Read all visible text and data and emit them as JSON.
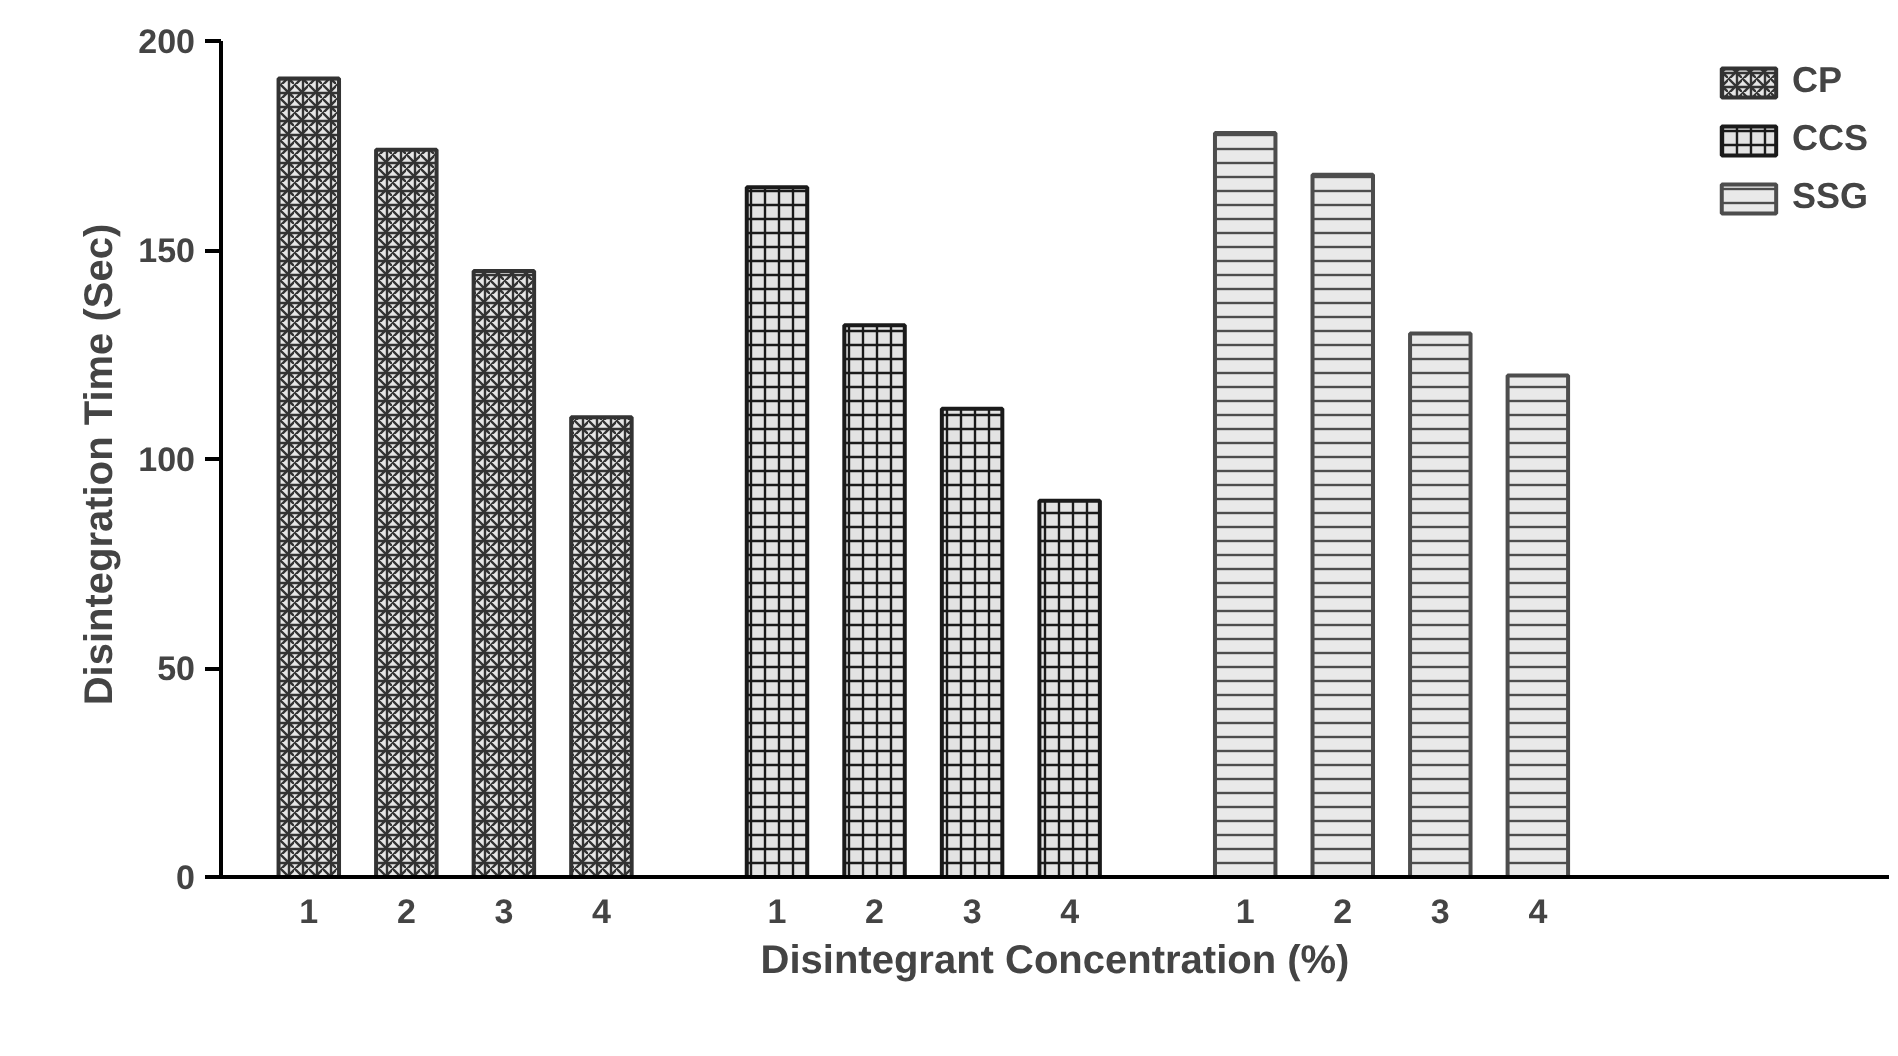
{
  "chart_data": {
    "type": "bar",
    "xlabel": "Disintegrant Concentration (%)",
    "ylabel": "Disintegration  Time (Sec)",
    "categories": [
      "1",
      "2",
      "3",
      "4",
      "1",
      "2",
      "3",
      "4",
      "1",
      "2",
      "3",
      "4"
    ],
    "series": [
      {
        "name": "CP",
        "color": "#333333",
        "values": [
          191,
          174,
          145,
          110,
          null,
          null,
          null,
          null,
          null,
          null,
          null,
          null
        ]
      },
      {
        "name": "CCS",
        "color": "#1a1a1a",
        "values": [
          null,
          null,
          null,
          null,
          165,
          132,
          112,
          90,
          null,
          null,
          null,
          null
        ]
      },
      {
        "name": "SSG",
        "color": "#4d4d4d",
        "values": [
          null,
          null,
          null,
          null,
          null,
          null,
          null,
          null,
          178,
          168,
          130,
          120
        ]
      }
    ],
    "ylim": [
      0,
      200
    ],
    "yticks": [
      0,
      50,
      100,
      150,
      200
    ],
    "grid": false,
    "legend": "top right"
  }
}
